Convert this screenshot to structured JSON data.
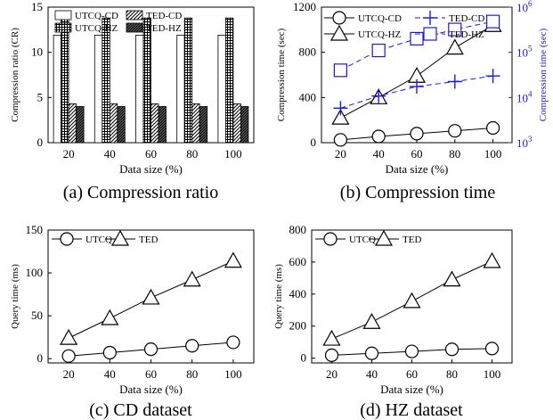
{
  "chart_data": [
    {
      "type": "bar",
      "caption": "(a) Compression ratio",
      "xlabel": "Data size (%)",
      "ylabel": "Compression ratio (CR)",
      "categories": [
        "20",
        "40",
        "60",
        "80",
        "100"
      ],
      "ylim": [
        0,
        15
      ],
      "yticks": [
        0,
        5,
        10,
        15
      ],
      "series": [
        {
          "name": "UTCQ-CD",
          "values": [
            11.9,
            11.9,
            11.9,
            11.9,
            11.9
          ],
          "pattern": "white"
        },
        {
          "name": "UTCQ-HZ",
          "values": [
            13.8,
            13.8,
            13.8,
            13.8,
            13.8
          ],
          "pattern": "grid"
        },
        {
          "name": "TED-CD",
          "values": [
            4.3,
            4.3,
            4.3,
            4.3,
            4.3
          ],
          "pattern": "diag"
        },
        {
          "name": "TED-HZ",
          "values": [
            4.0,
            4.0,
            4.0,
            4.0,
            4.0
          ],
          "pattern": "dense"
        }
      ],
      "legend": [
        "UTCQ-CD",
        "TED-CD",
        "UTCQ-HZ",
        "TED-HZ"
      ],
      "legend_position": "top"
    },
    {
      "type": "line",
      "caption": "(b) Compression time",
      "xlabel": "Data size (%)",
      "ylabel": "Compression time (sec)",
      "y2label": "Compression time (sec)",
      "x": [
        20,
        40,
        60,
        80,
        100
      ],
      "xlim": [
        10,
        110
      ],
      "ylim": [
        0,
        1200
      ],
      "yticks": [
        0,
        400,
        800,
        1200
      ],
      "y2scale": "log",
      "y2lim": [
        1000,
        1000000
      ],
      "y2ticks": [
        "10^3",
        "10^4",
        "10^5",
        "10^6"
      ],
      "y2color": "#1a1adf",
      "series": [
        {
          "name": "UTCQ-CD",
          "values": [
            25,
            55,
            80,
            105,
            130
          ],
          "marker": "circle",
          "style": "solid",
          "axis": "left",
          "color": "#000000"
        },
        {
          "name": "UTCQ-HZ",
          "values": [
            220,
            400,
            590,
            840,
            1040
          ],
          "marker": "triangle",
          "style": "solid",
          "axis": "left",
          "color": "#000000"
        },
        {
          "name": "TED-CD",
          "values": [
            5800,
            10800,
            17500,
            22500,
            30000
          ],
          "marker": "plus",
          "style": "dashed",
          "axis": "right",
          "color": "#1a1adf"
        },
        {
          "name": "TED-HZ",
          "values": [
            40000,
            110000,
            200000,
            320000,
            480000
          ],
          "marker": "square",
          "style": "dashed",
          "axis": "right",
          "color": "#1a1adf"
        }
      ],
      "legend_position": "top"
    },
    {
      "type": "line",
      "caption": "(c) CD dataset",
      "xlabel": "Data size (%)",
      "ylabel": "Query time (ms)",
      "x": [
        20,
        40,
        60,
        80,
        100
      ],
      "xlim": [
        10,
        110
      ],
      "ylim": [
        -5,
        150
      ],
      "yticks": [
        0,
        50,
        100,
        150
      ],
      "series": [
        {
          "name": "UTCQ",
          "values": [
            3,
            7,
            11,
            15,
            19
          ],
          "marker": "circle",
          "style": "solid",
          "axis": "left",
          "color": "#000000"
        },
        {
          "name": "TED",
          "values": [
            24,
            47,
            71,
            92,
            114
          ],
          "marker": "triangle",
          "style": "solid",
          "axis": "left",
          "color": "#000000"
        }
      ],
      "legend_position": "top-left"
    },
    {
      "type": "line",
      "caption": "(d) HZ dataset",
      "xlabel": "Data size (%)",
      "ylabel": "Query time (ms)",
      "x": [
        20,
        40,
        60,
        80,
        100
      ],
      "xlim": [
        10,
        110
      ],
      "ylim": [
        -30,
        800
      ],
      "yticks": [
        0,
        200,
        400,
        600,
        800
      ],
      "series": [
        {
          "name": "UTCQ",
          "values": [
            18,
            30,
            42,
            55,
            60
          ],
          "marker": "circle",
          "style": "solid",
          "axis": "left",
          "color": "#000000"
        },
        {
          "name": "TED",
          "values": [
            120,
            225,
            355,
            490,
            605
          ],
          "marker": "triangle",
          "style": "solid",
          "axis": "left",
          "color": "#000000"
        }
      ],
      "legend_position": "top-left"
    }
  ]
}
